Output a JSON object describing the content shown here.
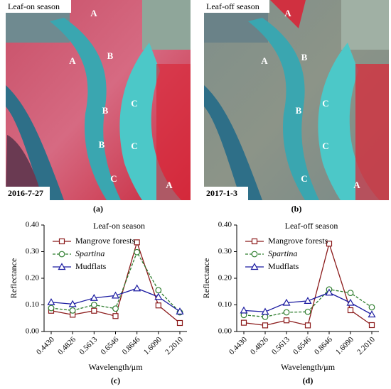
{
  "images": [
    {
      "title": "Leaf-on season",
      "date": "2016-7-27",
      "caption": "(a)",
      "labels": [
        "A",
        "A",
        "B",
        "B",
        "B",
        "C",
        "C",
        "C",
        "A"
      ]
    },
    {
      "title": "Leaf-off season",
      "date": "2017-1-3",
      "caption": "(b)",
      "labels": [
        "A",
        "A",
        "B",
        "B",
        "C",
        "C",
        "C",
        "A"
      ]
    }
  ],
  "chart_data": [
    {
      "type": "line",
      "title": "Leaf-on season",
      "caption": "(c)",
      "xlabel": "Wavelength/μm",
      "ylabel": "Reflectance",
      "categories": [
        "0.4430",
        "0.4826",
        "0.5613",
        "0.6546",
        "0.8646",
        "1.6090",
        "2.2010"
      ],
      "ylim": [
        0,
        0.4
      ],
      "yticks": [
        {
          "value": 0,
          "label": "0.00"
        },
        {
          "value": 0.1,
          "label": "0.10"
        },
        {
          "value": 0.2,
          "label": "0.20"
        },
        {
          "value": 0.3,
          "label": "0.30"
        },
        {
          "value": 0.4,
          "label": "0.40"
        }
      ],
      "legend": "upper left",
      "series": [
        {
          "name": "Mangrove forests",
          "color": "#8b1a1a",
          "marker": "square",
          "dash": false,
          "values": [
            0.078,
            0.063,
            0.078,
            0.058,
            0.335,
            0.098,
            0.032
          ]
        },
        {
          "name": "Spartina",
          "color": "#2e7d2e",
          "marker": "circle",
          "dash": true,
          "values": [
            0.088,
            0.079,
            0.1,
            0.086,
            0.298,
            0.155,
            0.072
          ]
        },
        {
          "name": "Mudflats",
          "color": "#1a1aa0",
          "marker": "triangle",
          "dash": false,
          "values": [
            0.11,
            0.103,
            0.126,
            0.135,
            0.162,
            0.13,
            0.075
          ]
        }
      ]
    },
    {
      "type": "line",
      "title": "Leaf-off season",
      "caption": "(d)",
      "xlabel": "Wavelength/μm",
      "ylabel": "Reflectance",
      "categories": [
        "0.4430",
        "0.4826",
        "0.5613",
        "0.6546",
        "0.8646",
        "1.6090",
        "2.2010"
      ],
      "ylim": [
        0,
        0.4
      ],
      "yticks": [
        {
          "value": 0,
          "label": "0.00"
        },
        {
          "value": 0.1,
          "label": "0.10"
        },
        {
          "value": 0.2,
          "label": "0.20"
        },
        {
          "value": 0.3,
          "label": "0.30"
        },
        {
          "value": 0.4,
          "label": "0.40"
        }
      ],
      "legend": "upper left",
      "series": [
        {
          "name": "Mangrove forests",
          "color": "#8b1a1a",
          "marker": "square",
          "dash": false,
          "values": [
            0.033,
            0.023,
            0.042,
            0.023,
            0.33,
            0.08,
            0.024
          ]
        },
        {
          "name": "Spartina",
          "color": "#2e7d2e",
          "marker": "circle",
          "dash": true,
          "values": [
            0.062,
            0.055,
            0.072,
            0.074,
            0.158,
            0.145,
            0.091
          ]
        },
        {
          "name": "Mudflats",
          "color": "#1a1aa0",
          "marker": "triangle",
          "dash": false,
          "values": [
            0.079,
            0.074,
            0.108,
            0.115,
            0.146,
            0.108,
            0.064
          ]
        }
      ]
    }
  ]
}
